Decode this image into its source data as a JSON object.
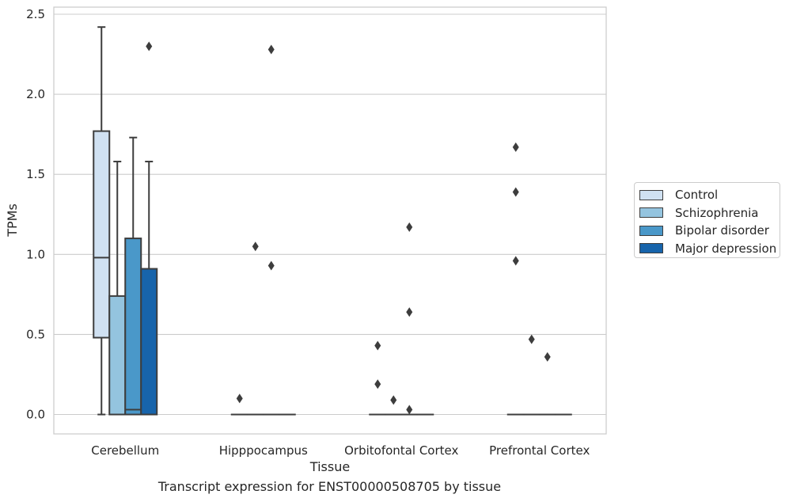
{
  "chart_data": {
    "type": "box",
    "xlabel": "Tissue",
    "ylabel": "TPMs",
    "caption": "Transcript expression for ENST00000508705 by tissue",
    "ylim": [
      -0.12,
      2.55
    ],
    "yticks": [
      "0.0",
      "0.5",
      "1.0",
      "1.5",
      "2.0",
      "2.5"
    ],
    "ytick_values": [
      0.0,
      0.5,
      1.0,
      1.5,
      2.0,
      2.5
    ],
    "grid": true,
    "legend_placement": "right-outside",
    "categories": [
      "Cerebellum",
      "Hipppocampus",
      "Orbitofontal Cortex",
      "Prefrontal Cortex"
    ],
    "series": [
      {
        "name": "Control",
        "color": "#d0e1f2",
        "boxes": [
          {
            "min": 0.0,
            "q1": 0.48,
            "median": 0.98,
            "q3": 1.77,
            "max": 2.42,
            "outliers": []
          },
          {
            "min": 0.0,
            "q1": 0.0,
            "median": 0.0,
            "q3": 0.0,
            "max": 0.0,
            "outliers": [
              0.1
            ]
          },
          {
            "min": 0.0,
            "q1": 0.0,
            "median": 0.0,
            "q3": 0.0,
            "max": 0.0,
            "outliers": [
              0.43,
              0.19
            ]
          },
          {
            "min": 0.0,
            "q1": 0.0,
            "median": 0.0,
            "q3": 0.0,
            "max": 0.0,
            "outliers": [
              1.67,
              1.39,
              0.96
            ]
          }
        ]
      },
      {
        "name": "Schizophrenia",
        "color": "#94c4df",
        "boxes": [
          {
            "min": 0.0,
            "q1": 0.0,
            "median": 0.0,
            "q3": 0.74,
            "max": 1.58,
            "outliers": []
          },
          {
            "min": 0.0,
            "q1": 0.0,
            "median": 0.0,
            "q3": 0.0,
            "max": 0.0,
            "outliers": [
              1.05
            ]
          },
          {
            "min": 0.0,
            "q1": 0.0,
            "median": 0.0,
            "q3": 0.0,
            "max": 0.0,
            "outliers": [
              0.09
            ]
          },
          {
            "min": 0.0,
            "q1": 0.0,
            "median": 0.0,
            "q3": 0.0,
            "max": 0.0,
            "outliers": [
              0.47
            ]
          }
        ]
      },
      {
        "name": "Bipolar disorder",
        "color": "#4a98c9",
        "boxes": [
          {
            "min": 0.0,
            "q1": 0.0,
            "median": 0.03,
            "q3": 1.1,
            "max": 1.73,
            "outliers": []
          },
          {
            "min": 0.0,
            "q1": 0.0,
            "median": 0.0,
            "q3": 0.0,
            "max": 0.0,
            "outliers": [
              2.28,
              0.93
            ]
          },
          {
            "min": 0.0,
            "q1": 0.0,
            "median": 0.0,
            "q3": 0.0,
            "max": 0.0,
            "outliers": [
              1.17,
              0.64,
              0.03
            ]
          },
          {
            "min": 0.0,
            "q1": 0.0,
            "median": 0.0,
            "q3": 0.0,
            "max": 0.0,
            "outliers": [
              0.36
            ]
          }
        ]
      },
      {
        "name": "Major depression",
        "color": "#1764ab",
        "boxes": [
          {
            "min": 0.0,
            "q1": 0.0,
            "median": 0.0,
            "q3": 0.91,
            "max": 1.58,
            "outliers": [
              2.3
            ]
          },
          {
            "min": 0.0,
            "q1": 0.0,
            "median": 0.0,
            "q3": 0.0,
            "max": 0.0,
            "outliers": []
          },
          {
            "min": 0.0,
            "q1": 0.0,
            "median": 0.0,
            "q3": 0.0,
            "max": 0.0,
            "outliers": []
          },
          {
            "min": 0.0,
            "q1": 0.0,
            "median": 0.0,
            "q3": 0.0,
            "max": 0.0,
            "outliers": []
          }
        ]
      }
    ]
  }
}
